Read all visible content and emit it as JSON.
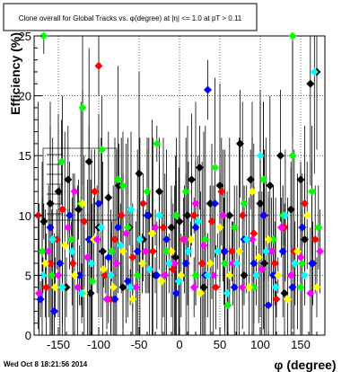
{
  "chart_data": {
    "type": "scatter",
    "title": "Clone  overall for Global Tracks vs. φ(degree) at |η| <= 1.0 at pT > 0.11",
    "xlabel": "φ (degree)",
    "ylabel": "Efficiency (%)",
    "xlim": [
      -180,
      180
    ],
    "ylim": [
      0,
      25
    ],
    "x_ticks": [
      -150,
      -100,
      -50,
      0,
      50,
      100,
      150
    ],
    "y_ticks": [
      0,
      5,
      10,
      15,
      20,
      25
    ],
    "grid": true,
    "legend_position": "left-middle",
    "series": [
      {
        "color": "#000000",
        "marker": "diamond",
        "points": [
          [
            -168,
            9.5
          ],
          [
            -160,
            11
          ],
          [
            -150,
            12
          ],
          [
            -138,
            13
          ],
          [
            -125,
            10.5
          ],
          [
            -112,
            14.5
          ],
          [
            -100,
            9
          ],
          [
            -88,
            11.5
          ],
          [
            -75,
            12.5
          ],
          [
            -62,
            9
          ],
          [
            -50,
            13.5
          ],
          [
            -38,
            10
          ],
          [
            -25,
            12
          ],
          [
            -10,
            9
          ],
          [
            0,
            9.5
          ],
          [
            10,
            10
          ],
          [
            15,
            13
          ],
          [
            25,
            14
          ],
          [
            38,
            11
          ],
          [
            50,
            12.5
          ],
          [
            62,
            10
          ],
          [
            75,
            16
          ],
          [
            88,
            13
          ],
          [
            100,
            11
          ],
          [
            112,
            12.5
          ],
          [
            125,
            15
          ],
          [
            138,
            10.5
          ],
          [
            150,
            13
          ],
          [
            162,
            21
          ],
          [
            170,
            22
          ],
          [
            -170,
            7
          ],
          [
            -140,
            4
          ],
          [
            -110,
            3.5
          ],
          [
            -95,
            7
          ],
          [
            -70,
            4
          ],
          [
            -45,
            8
          ],
          [
            -30,
            5
          ],
          [
            -5,
            6.5
          ],
          [
            30,
            4
          ],
          [
            55,
            7
          ],
          [
            80,
            5
          ],
          [
            105,
            6
          ],
          [
            130,
            3.5
          ],
          [
            155,
            8
          ],
          [
            165,
            6
          ]
        ]
      },
      {
        "color": "#ff0000",
        "marker": "diamond",
        "points": [
          [
            -165,
            4
          ],
          [
            -152,
            8
          ],
          [
            -145,
            10.5
          ],
          [
            -132,
            6
          ],
          [
            -118,
            9.5
          ],
          [
            -105,
            12
          ],
          [
            -92,
            5
          ],
          [
            -80,
            8
          ],
          [
            -72,
            10
          ],
          [
            -58,
            6.5
          ],
          [
            -45,
            11
          ],
          [
            -33,
            7
          ],
          [
            -20,
            9
          ],
          [
            -8,
            5.5
          ],
          [
            5,
            8
          ],
          [
            18,
            10
          ],
          [
            28,
            6
          ],
          [
            40,
            9.5
          ],
          [
            52,
            12
          ],
          [
            65,
            7
          ],
          [
            78,
            10
          ],
          [
            92,
            8.5
          ],
          [
            105,
            10
          ],
          [
            118,
            6
          ],
          [
            130,
            9
          ],
          [
            142,
            7
          ],
          [
            155,
            11
          ],
          [
            168,
            8
          ],
          [
            -100,
            22.5
          ],
          [
            -175,
            10
          ],
          [
            -160,
            6
          ],
          [
            -85,
            3
          ],
          [
            45,
            4
          ],
          [
            120,
            3
          ]
        ]
      },
      {
        "color": "#00ff00",
        "marker": "diamond",
        "points": [
          [
            -170,
            7
          ],
          [
            -158,
            5
          ],
          [
            -146,
            14.5
          ],
          [
            -134,
            8
          ],
          [
            -122,
            11
          ],
          [
            -108,
            4.5
          ],
          [
            -96,
            15.5
          ],
          [
            -84,
            7
          ],
          [
            -76,
            13
          ],
          [
            -64,
            9
          ],
          [
            -52,
            5
          ],
          [
            -40,
            12
          ],
          [
            -28,
            16
          ],
          [
            -16,
            7
          ],
          [
            -4,
            10
          ],
          [
            8,
            12
          ],
          [
            20,
            5
          ],
          [
            32,
            8
          ],
          [
            44,
            14
          ],
          [
            56,
            6
          ],
          [
            68,
            9
          ],
          [
            80,
            11
          ],
          [
            92,
            4
          ],
          [
            104,
            13
          ],
          [
            116,
            8
          ],
          [
            128,
            10
          ],
          [
            140,
            15
          ],
          [
            152,
            6
          ],
          [
            164,
            12
          ],
          [
            172,
            9
          ],
          [
            -168,
            25
          ],
          [
            140,
            25
          ],
          [
            -120,
            19
          ],
          [
            -70,
            12.5
          ],
          [
            60,
            2.5
          ],
          [
            150,
            4
          ]
        ]
      },
      {
        "color": "#0000ff",
        "marker": "diamond",
        "points": [
          [
            -172,
            3
          ],
          [
            -160,
            9
          ],
          [
            -148,
            6
          ],
          [
            -136,
            10
          ],
          [
            -124,
            5
          ],
          [
            -112,
            8
          ],
          [
            -100,
            11
          ],
          [
            -88,
            6.5
          ],
          [
            -76,
            9
          ],
          [
            -64,
            4.5
          ],
          [
            -52,
            7
          ],
          [
            -40,
            10
          ],
          [
            -28,
            5
          ],
          [
            -16,
            8
          ],
          [
            -4,
            3.5
          ],
          [
            8,
            6
          ],
          [
            20,
            9
          ],
          [
            32,
            5
          ],
          [
            44,
            11
          ],
          [
            56,
            7
          ],
          [
            68,
            4
          ],
          [
            80,
            8
          ],
          [
            92,
            6
          ],
          [
            104,
            10
          ],
          [
            116,
            5
          ],
          [
            128,
            7
          ],
          [
            140,
            4
          ],
          [
            152,
            9
          ],
          [
            164,
            6
          ],
          [
            -155,
            2
          ],
          [
            -80,
            3
          ],
          [
            35,
            20.5
          ],
          [
            110,
            2.5
          ]
        ]
      },
      {
        "color": "#ffff00",
        "marker": "diamond",
        "points": [
          [
            -166,
            6
          ],
          [
            -154,
            4
          ],
          [
            -142,
            7.5
          ],
          [
            -130,
            5
          ],
          [
            -118,
            3.5
          ],
          [
            -106,
            8
          ],
          [
            -94,
            5.5
          ],
          [
            -82,
            4
          ],
          [
            -70,
            7
          ],
          [
            -58,
            3
          ],
          [
            -46,
            6
          ],
          [
            -34,
            8.5
          ],
          [
            -22,
            4.5
          ],
          [
            -10,
            7
          ],
          [
            2,
            5
          ],
          [
            14,
            8
          ],
          [
            26,
            3.5
          ],
          [
            38,
            6
          ],
          [
            50,
            9
          ],
          [
            62,
            5
          ],
          [
            74,
            7
          ],
          [
            86,
            4
          ],
          [
            98,
            6.5
          ],
          [
            110,
            8
          ],
          [
            122,
            5
          ],
          [
            134,
            3
          ],
          [
            146,
            7
          ],
          [
            158,
            10
          ],
          [
            170,
            4
          ],
          [
            -120,
            11
          ],
          [
            90,
            12
          ]
        ]
      },
      {
        "color": "#ff00ff",
        "marker": "diamond",
        "points": [
          [
            -174,
            3.5
          ],
          [
            -162,
            7
          ],
          [
            -150,
            5
          ],
          [
            -138,
            9
          ],
          [
            -126,
            4
          ],
          [
            -114,
            6.5
          ],
          [
            -102,
            8
          ],
          [
            -90,
            3
          ],
          [
            -78,
            6
          ],
          [
            -66,
            8.5
          ],
          [
            -54,
            4
          ],
          [
            -42,
            7
          ],
          [
            -30,
            9
          ],
          [
            -18,
            5
          ],
          [
            -6,
            6
          ],
          [
            6,
            8
          ],
          [
            18,
            4
          ],
          [
            30,
            7.5
          ],
          [
            42,
            5
          ],
          [
            54,
            10
          ],
          [
            66,
            6
          ],
          [
            78,
            4
          ],
          [
            90,
            8
          ],
          [
            102,
            5.5
          ],
          [
            114,
            7
          ],
          [
            126,
            9
          ],
          [
            138,
            5
          ],
          [
            150,
            6.5
          ],
          [
            162,
            3.5
          ],
          [
            174,
            7
          ],
          [
            -130,
            12
          ],
          [
            20,
            11
          ]
        ]
      },
      {
        "color": "#00ffff",
        "marker": "diamond",
        "points": [
          [
            -169,
            5
          ],
          [
            -157,
            8
          ],
          [
            -145,
            4
          ],
          [
            -133,
            7
          ],
          [
            -121,
            3.5
          ],
          [
            -109,
            6
          ],
          [
            -97,
            9
          ],
          [
            -85,
            5
          ],
          [
            -73,
            7.5
          ],
          [
            -61,
            4
          ],
          [
            -49,
            8
          ],
          [
            -37,
            5.5
          ],
          [
            -25,
            10
          ],
          [
            -13,
            6
          ],
          [
            -1,
            4.5
          ],
          [
            11,
            7
          ],
          [
            23,
            9.5
          ],
          [
            35,
            5
          ],
          [
            47,
            7
          ],
          [
            59,
            3.5
          ],
          [
            71,
            6
          ],
          [
            83,
            8
          ],
          [
            95,
            5
          ],
          [
            107,
            7
          ],
          [
            119,
            4
          ],
          [
            131,
            10
          ],
          [
            143,
            6
          ],
          [
            155,
            5
          ],
          [
            167,
            22
          ],
          [
            -60,
            10.5
          ],
          [
            100,
            15
          ]
        ]
      }
    ]
  },
  "footer": {
    "timestamp": "Wed Oct  8 18:21:56 2014"
  }
}
